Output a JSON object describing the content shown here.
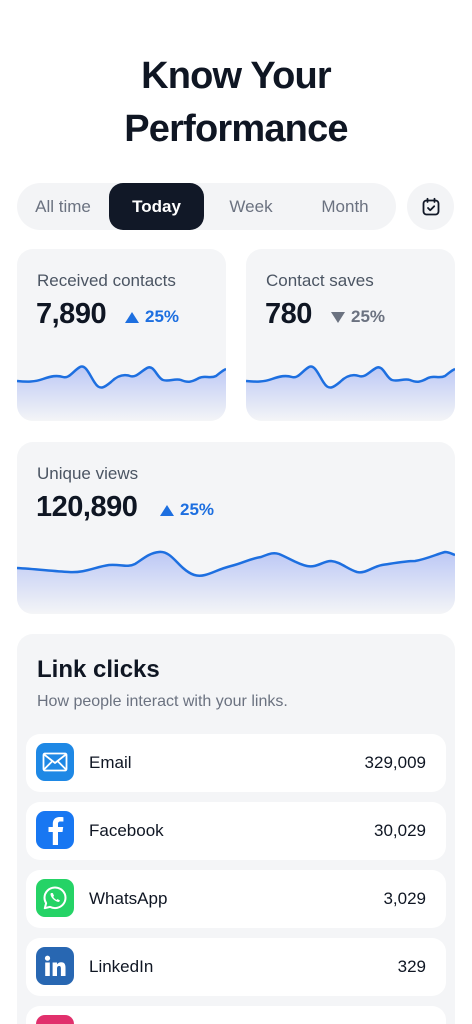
{
  "header": {
    "title_line1": "Know Your",
    "title_line2": "Performance"
  },
  "filters": {
    "tabs": [
      {
        "label": "All time",
        "active": false
      },
      {
        "label": "Today",
        "active": true
      },
      {
        "label": "Week",
        "active": false
      },
      {
        "label": "Month",
        "active": false
      }
    ],
    "calendar_icon": "calendar-check-icon"
  },
  "stats": {
    "received": {
      "label": "Received contacts",
      "value": "7,890",
      "delta": "25%",
      "trend": "up"
    },
    "saves": {
      "label": "Contact saves",
      "value": "780",
      "delta": "25%",
      "trend": "down"
    },
    "views": {
      "label": "Unique views",
      "value": "120,890",
      "delta": "25%",
      "trend": "up"
    }
  },
  "link_clicks": {
    "title": "Link clicks",
    "subtitle": "How people interact with your links.",
    "items": [
      {
        "name": "Email",
        "count": "329,009",
        "icon": "email-icon",
        "color": "#1e88e5"
      },
      {
        "name": "Facebook",
        "count": "30,029",
        "icon": "facebook-icon",
        "color": "#1877f2"
      },
      {
        "name": "WhatsApp",
        "count": "3,029",
        "icon": "whatsapp-icon",
        "color": "#25d366"
      },
      {
        "name": "LinkedIn",
        "count": "329",
        "icon": "linkedin-icon",
        "color": "#2867b2"
      }
    ]
  },
  "colors": {
    "accent": "#1d6fe0",
    "dark": "#111827",
    "card_bg": "#f4f5f7",
    "neutral": "#6b7280"
  }
}
